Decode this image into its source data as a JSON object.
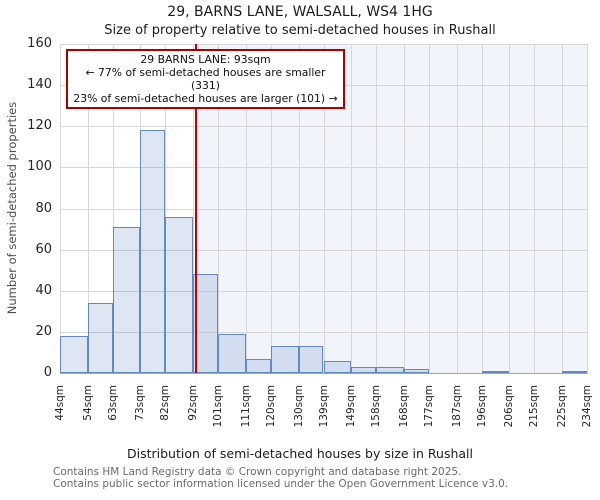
{
  "header": {
    "title": "29, BARNS LANE, WALSALL, WS4 1HG",
    "subtitle": "Size of property relative to semi-detached houses in Rushall"
  },
  "annotation": {
    "line1": "29 BARNS LANE: 93sqm",
    "line2": "← 77% of semi-detached houses are smaller (331)",
    "line3": "23% of semi-detached houses are larger (101) →"
  },
  "chart_data": {
    "type": "bar",
    "title": "29, BARNS LANE, WALSALL, WS4 1HG",
    "subtitle": "Size of property relative to semi-detached houses in Rushall",
    "xlabel": "Distribution of semi-detached houses by size in Rushall",
    "ylabel": "Number of semi-detached properties",
    "ylim": [
      0,
      160
    ],
    "y_ticks": [
      0,
      20,
      40,
      60,
      80,
      100,
      120,
      140,
      160
    ],
    "grid": true,
    "bin_edges_sqm": [
      44,
      54,
      63,
      73,
      82,
      92,
      101,
      111,
      120,
      130,
      139,
      149,
      158,
      168,
      177,
      187,
      196,
      206,
      215,
      225,
      234
    ],
    "x_tick_labels": [
      "44sqm",
      "54sqm",
      "63sqm",
      "73sqm",
      "82sqm",
      "92sqm",
      "101sqm",
      "111sqm",
      "120sqm",
      "130sqm",
      "139sqm",
      "149sqm",
      "158sqm",
      "168sqm",
      "177sqm",
      "187sqm",
      "196sqm",
      "206sqm",
      "215sqm",
      "225sqm",
      "234sqm"
    ],
    "values": [
      18,
      34,
      71,
      118,
      76,
      48,
      19,
      7,
      13,
      13,
      6,
      3,
      3,
      2,
      0,
      0,
      1,
      0,
      0,
      1
    ],
    "marker": {
      "value_sqm": 93,
      "smaller_count": 331,
      "smaller_pct": 77,
      "larger_count": 101,
      "larger_pct": 23
    },
    "colors": {
      "bar_fill": "#dce6f5",
      "bar_border": "#6289c4",
      "marker_line": "#bf0000",
      "annotation_border": "#aa0000",
      "shade_right_of_marker": "#f1f5fb",
      "gridline": "#d7d7d7"
    },
    "legend": null
  },
  "footer": {
    "line1": "Contains HM Land Registry data © Crown copyright and database right 2025.",
    "line2": "Contains public sector information licensed under the Open Government Licence v3.0."
  }
}
